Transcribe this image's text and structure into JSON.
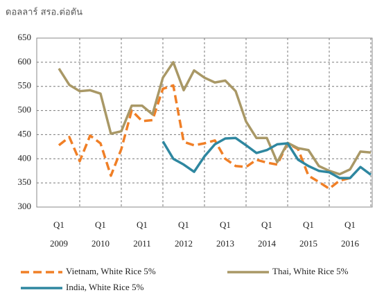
{
  "chart_data": {
    "type": "line",
    "title": "ดอลลาร์ สรอ.ต่อตัน",
    "categories": [
      [
        "Q1",
        "2009"
      ],
      null,
      null,
      null,
      [
        "Q1",
        "2010"
      ],
      null,
      null,
      null,
      [
        "Q1",
        "2011"
      ],
      null,
      null,
      null,
      [
        "Q1",
        "2012"
      ],
      null,
      null,
      null,
      [
        "Q1",
        "2013"
      ],
      null,
      null,
      null,
      [
        "Q1",
        "2014"
      ],
      null,
      null,
      null,
      [
        "Q1",
        "2015"
      ],
      null,
      null,
      null,
      [
        "Q1",
        "2016"
      ],
      null,
      null
    ],
    "series": [
      {
        "name": "Vietnam, White Rice 5%",
        "color": "#f07f26",
        "dash": true,
        "values": [
          428,
          445,
          395,
          448,
          432,
          365,
          420,
          500,
          478,
          480,
          545,
          552,
          435,
          428,
          432,
          438,
          400,
          385,
          383,
          398,
          392,
          388,
          432,
          420,
          365,
          352,
          338,
          355,
          360,
          null,
          null
        ]
      },
      {
        "name": "Thai, White Rice 5%",
        "color": "#a99866",
        "dash": false,
        "values": [
          587,
          553,
          540,
          542,
          535,
          452,
          457,
          510,
          510,
          492,
          568,
          600,
          542,
          583,
          568,
          558,
          562,
          540,
          477,
          443,
          443,
          393,
          433,
          422,
          418,
          385,
          375,
          368,
          378,
          415,
          413
        ]
      },
      {
        "name": "India, White Rice 5%",
        "color": "#2e87a0",
        "dash": false,
        "values": [
          null,
          null,
          null,
          null,
          null,
          null,
          null,
          null,
          null,
          null,
          436,
          400,
          388,
          373,
          405,
          430,
          442,
          443,
          428,
          412,
          418,
          430,
          432,
          398,
          385,
          375,
          372,
          360,
          360,
          383,
          367
        ]
      }
    ],
    "ylim": [
      300,
      650
    ],
    "yticks": [
      300,
      350,
      400,
      450,
      500,
      550,
      600,
      650
    ],
    "grid": true
  }
}
